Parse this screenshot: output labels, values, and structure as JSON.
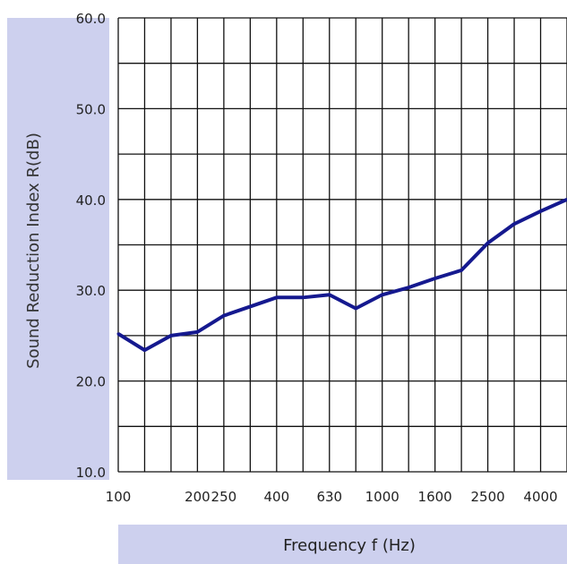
{
  "chart_data": {
    "type": "line",
    "title": "",
    "xlabel": "Frequency f (Hz)",
    "ylabel": "Sound Reduction Index R(dB)",
    "x_ticks": [
      "100",
      "200",
      "250",
      "400",
      "630",
      "1000",
      "1600",
      "2500",
      "4000"
    ],
    "y_ticks": [
      "10.0",
      "20.0",
      "30.0",
      "40.0",
      "50.0",
      "60.0"
    ],
    "ylim": [
      10,
      60
    ],
    "grid": true,
    "x": [
      "100",
      "125",
      "160",
      "200",
      "250",
      "315",
      "400",
      "500",
      "630",
      "800",
      "1000",
      "1250",
      "1600",
      "2000",
      "2500",
      "3150",
      "4000",
      "5000"
    ],
    "series": [
      {
        "values": [
          25.2,
          23.4,
          25.0,
          25.4,
          27.2,
          28.2,
          29.2,
          29.2,
          29.5,
          28.0,
          29.5,
          30.3,
          31.3,
          32.2,
          35.2,
          37.3,
          38.7,
          40.0
        ],
        "color": "#15198f"
      }
    ],
    "label_band_color": "#cdd0ee"
  }
}
